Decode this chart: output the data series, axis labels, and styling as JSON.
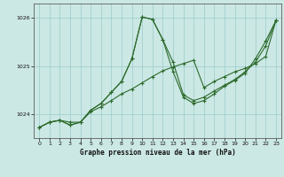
{
  "title": "Graphe pression niveau de la mer (hPa)",
  "bg_color": "#cce8e4",
  "grid_color": "#99cccc",
  "line_color": "#2d6b2d",
  "marker_color": "#2d6b2d",
  "ylim": [
    1023.5,
    1026.3
  ],
  "xlim": [
    -0.5,
    23.5
  ],
  "yticks": [
    1024,
    1025,
    1026
  ],
  "xticks": [
    0,
    1,
    2,
    3,
    4,
    5,
    6,
    7,
    8,
    9,
    10,
    11,
    12,
    13,
    14,
    15,
    16,
    17,
    18,
    19,
    20,
    21,
    22,
    23
  ],
  "series1_x": [
    0,
    1,
    2,
    3,
    4,
    5,
    6,
    7,
    8,
    9,
    10,
    11,
    12,
    13,
    14,
    15,
    16,
    17,
    18,
    19,
    20,
    21,
    22,
    23
  ],
  "series1_y": [
    1023.72,
    1023.83,
    1023.87,
    1023.83,
    1023.83,
    1024.05,
    1024.15,
    1024.28,
    1024.42,
    1024.52,
    1024.65,
    1024.78,
    1024.9,
    1024.98,
    1025.05,
    1025.12,
    1024.55,
    1024.68,
    1024.78,
    1024.88,
    1024.95,
    1025.05,
    1025.2,
    1025.95
  ],
  "series2_x": [
    0,
    1,
    2,
    3,
    4,
    5,
    6,
    7,
    8,
    9,
    10,
    11,
    12,
    13,
    14,
    15,
    16,
    17,
    18,
    19,
    20,
    21,
    22,
    23
  ],
  "series2_y": [
    1023.72,
    1023.83,
    1023.87,
    1023.77,
    1023.83,
    1024.08,
    1024.22,
    1024.45,
    1024.68,
    1025.15,
    1026.02,
    1025.97,
    1025.55,
    1025.08,
    1024.4,
    1024.28,
    1024.35,
    1024.48,
    1024.6,
    1024.72,
    1024.88,
    1025.08,
    1025.42,
    1025.95
  ],
  "series3_x": [
    0,
    1,
    2,
    3,
    4,
    5,
    6,
    7,
    8,
    9,
    10,
    11,
    12,
    13,
    14,
    15,
    16,
    17,
    18,
    19,
    20,
    21,
    22,
    23
  ],
  "series3_y": [
    1023.72,
    1023.83,
    1023.87,
    1023.77,
    1023.83,
    1024.08,
    1024.22,
    1024.45,
    1024.68,
    1025.15,
    1026.02,
    1025.97,
    1025.55,
    1024.88,
    1024.35,
    1024.22,
    1024.28,
    1024.42,
    1024.58,
    1024.7,
    1024.85,
    1025.15,
    1025.52,
    1025.95
  ]
}
